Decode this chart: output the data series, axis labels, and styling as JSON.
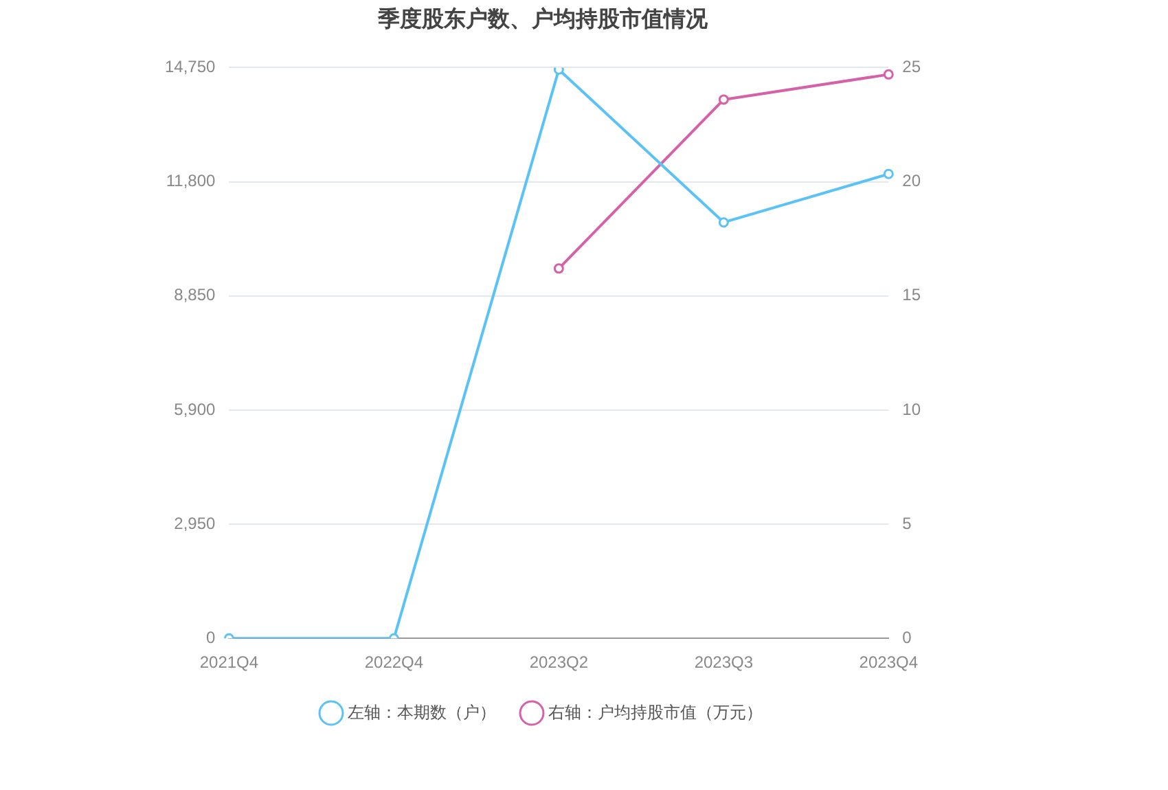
{
  "chart_data": {
    "type": "line",
    "title": "季度股东户数、户均持股市值情况",
    "categories": [
      "2021Q4",
      "2022Q4",
      "2023Q2",
      "2023Q3",
      "2023Q4"
    ],
    "series": [
      {
        "name": "左轴：本期数（户）",
        "color": "#5bc2f6",
        "values": [
          0,
          0,
          14700,
          10750,
          12000
        ]
      },
      {
        "name": "右轴：户均持股市值（万元）",
        "color": "#d562a9",
        "values": [
          null,
          null,
          16.2,
          23.6,
          24.7
        ],
        "axis": "y2"
      }
    ],
    "ylim": [
      0,
      14750
    ],
    "yticks": [
      0,
      {
        "value": 2950,
        "label": "2,950"
      },
      {
        "value": 5900,
        "label": "5,900"
      },
      {
        "value": 8850,
        "label": "8,850"
      },
      {
        "value": 11800,
        "label": "11,800"
      },
      {
        "value": 14750,
        "label": "14,750"
      }
    ],
    "y2lim": [
      0,
      25
    ],
    "y2ticks": [
      0,
      5,
      10,
      15,
      20,
      25
    ],
    "grid": "y",
    "legend": "bottom",
    "marker": "circle",
    "line_style": "solid"
  }
}
